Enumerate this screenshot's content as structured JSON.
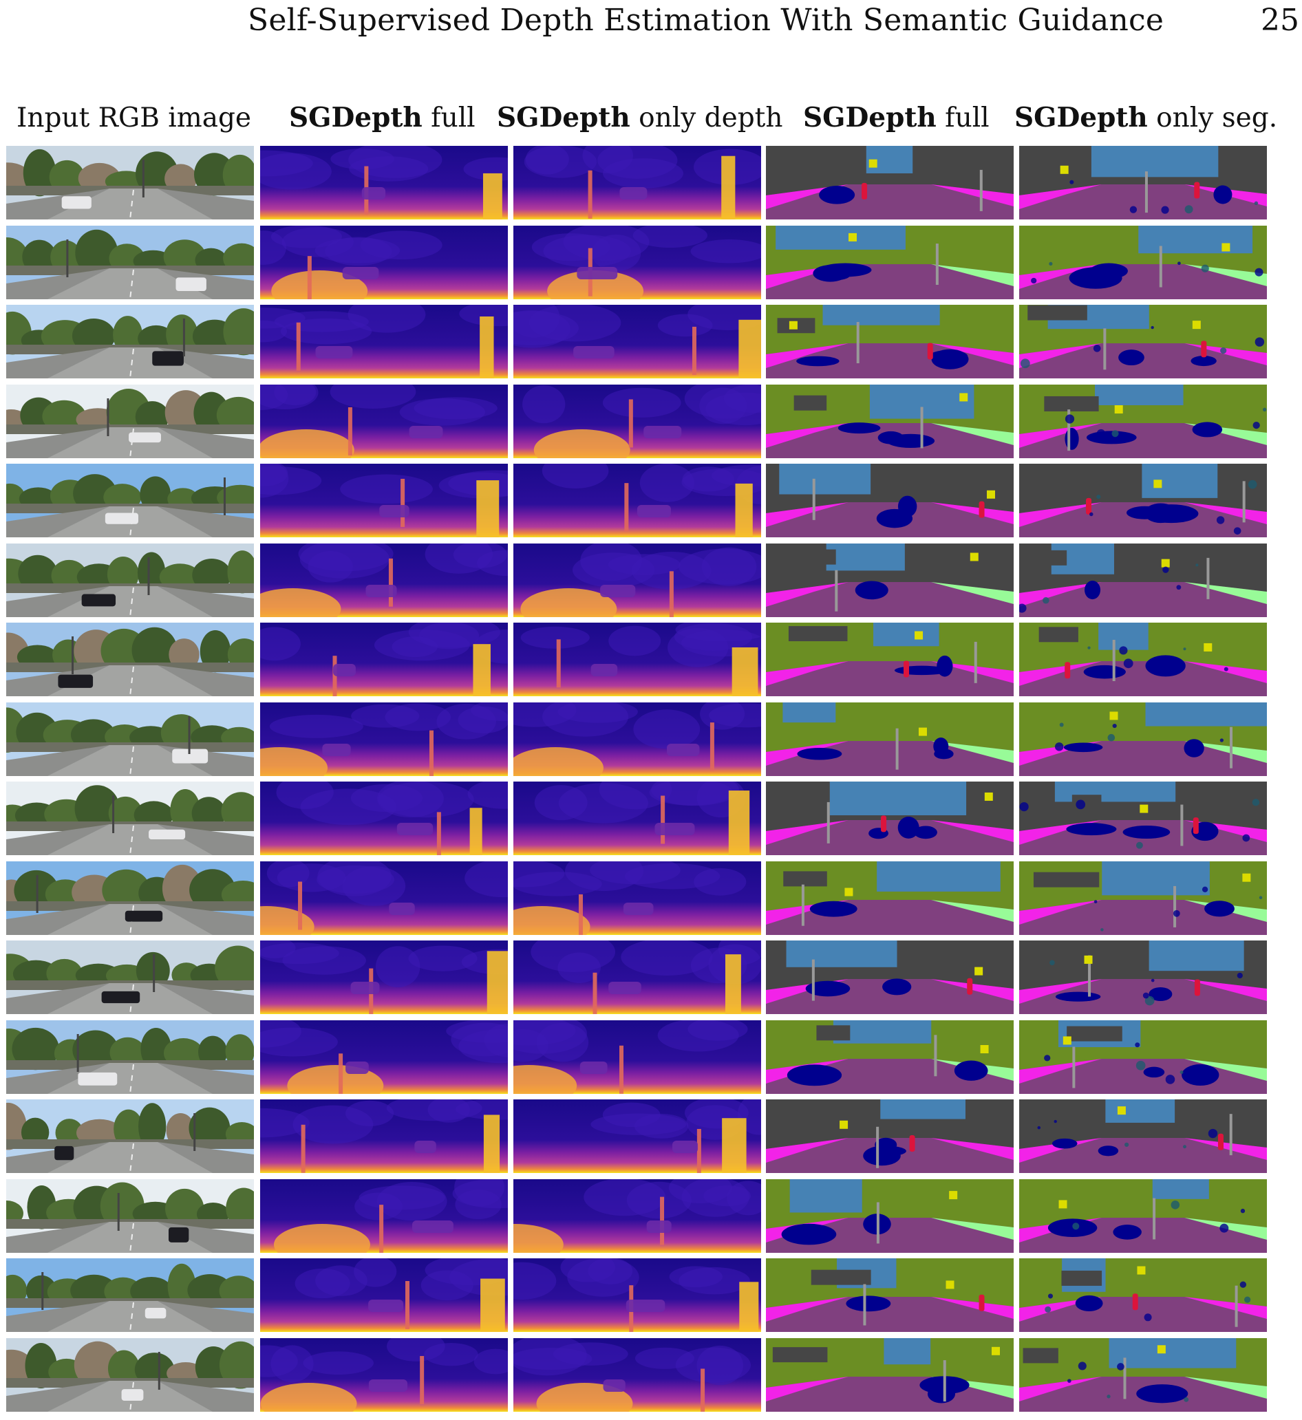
{
  "header": {
    "running_title": "Self-Supervised Depth Estimation With Semantic Guidance",
    "page_number": "25"
  },
  "columns": [
    {
      "bold": "",
      "rest": "Input RGB image"
    },
    {
      "bold": "SGDepth",
      "rest": " full"
    },
    {
      "bold": "SGDepth",
      "rest": " only depth"
    },
    {
      "bold": "SGDepth",
      "rest": " full"
    },
    {
      "bold": "SGDepth",
      "rest": " only seg."
    }
  ],
  "rows": 16,
  "colors": {
    "depth_far": "#1a0a8a",
    "depth_mid": "#b23b9b",
    "depth_near": "#f5e11c",
    "seg_sky": "#4682b4",
    "seg_vegetation": "#6b8e23",
    "seg_road": "#80407f",
    "seg_sidewalk": "#f223e8",
    "seg_building": "#464646",
    "seg_car": "#00008e",
    "seg_person": "#dc143c",
    "seg_terrain": "#98fb98",
    "seg_pole": "#999999",
    "seg_sign": "#dcdc00"
  }
}
